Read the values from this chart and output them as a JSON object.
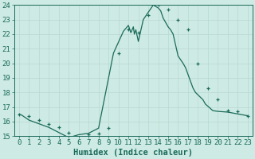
{
  "title": "",
  "xlabel": "Humidex (Indice chaleur)",
  "ylabel": "",
  "background_color": "#ceeae4",
  "line_color": "#1a6b5a",
  "marker_color": "#1a6b5a",
  "grid_color": "#b8d8d0",
  "axis_color": "#1a6b5a",
  "ylim": [
    15,
    24
  ],
  "xlim": [
    -0.5,
    23.5
  ],
  "yticks": [
    15,
    16,
    17,
    18,
    19,
    20,
    21,
    22,
    23,
    24
  ],
  "xticks": [
    0,
    1,
    2,
    3,
    4,
    5,
    6,
    7,
    8,
    9,
    10,
    11,
    12,
    13,
    14,
    15,
    16,
    17,
    18,
    19,
    20,
    21,
    22,
    23
  ],
  "humidex_values": [
    16.5,
    16.45,
    16.1,
    15.85,
    15.6,
    15.25,
    14.9,
    15.1,
    15.2,
    15.55,
    20.7,
    22.2,
    22.6,
    22.1,
    22.5,
    22.0,
    22.3,
    21.5,
    23.0,
    23.5,
    24.0,
    23.8,
    23.6,
    23.1,
    22.5,
    22.3,
    22.0,
    20.5,
    20.0,
    19.7,
    18.3,
    18.0,
    17.5,
    17.2,
    16.75,
    16.7,
    16.65,
    16.4
  ],
  "x_values": [
    0,
    0.25,
    1,
    2,
    3,
    4,
    5,
    6,
    7,
    8,
    9.5,
    10.5,
    11.0,
    11.25,
    11.5,
    11.6,
    11.75,
    12.0,
    12.5,
    13.0,
    13.5,
    14.0,
    14.25,
    14.5,
    15.0,
    15.25,
    15.5,
    16.0,
    16.5,
    16.75,
    17.5,
    17.75,
    18.5,
    18.75,
    19.5,
    20.0,
    21.0,
    23.0
  ],
  "marker_x": [
    0,
    1,
    2,
    3,
    4,
    5,
    6,
    7,
    8,
    9,
    10,
    11,
    12,
    13,
    14,
    15,
    16,
    17,
    18,
    19,
    20,
    21,
    22,
    23
  ],
  "marker_y": [
    16.5,
    16.4,
    16.1,
    15.85,
    15.6,
    15.25,
    14.9,
    15.1,
    15.2,
    15.55,
    20.7,
    22.3,
    22.1,
    23.3,
    24.0,
    23.7,
    23.0,
    22.3,
    20.0,
    18.3,
    17.5,
    16.75,
    16.7,
    16.4
  ],
  "font_size": 6.5,
  "label_font_size": 7.5
}
